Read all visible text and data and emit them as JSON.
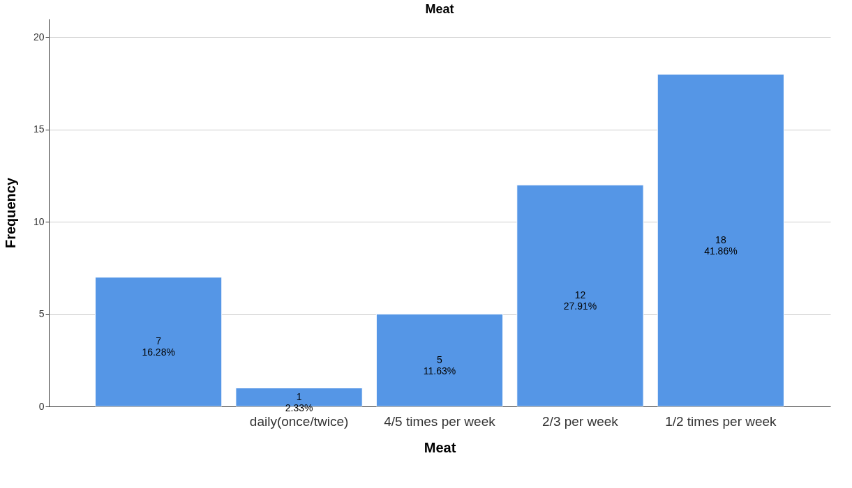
{
  "chart_data": {
    "type": "bar",
    "title": "Meat",
    "xlabel": "Meat",
    "ylabel": "Frequency",
    "categories": [
      null,
      "daily(once/twice)",
      "4/5 times per week",
      "2/3 per week",
      "1/2 times per week"
    ],
    "values": [
      7,
      1,
      5,
      12,
      18
    ],
    "value_labels": [
      "7\n16.28%",
      "1\n2.33%",
      "5\n11.63%",
      "12\n27.91%",
      "18\n41.86%"
    ],
    "color": "#5596e6",
    "ylim": [
      0,
      21
    ],
    "yticks": [
      0,
      5,
      10,
      15,
      20
    ],
    "grid": "y"
  }
}
